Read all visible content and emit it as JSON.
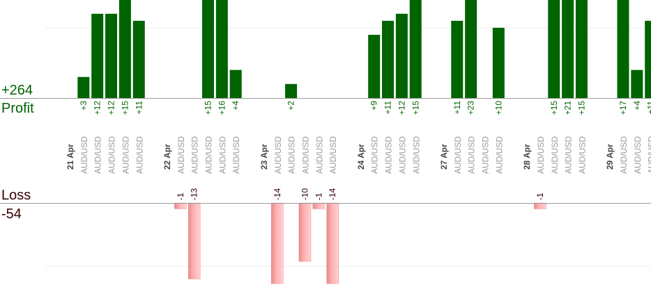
{
  "summary": {
    "profit_total": "+264",
    "profit_label": "Profit",
    "loss_label": "Loss",
    "loss_total": "-54"
  },
  "colors": {
    "profit_bar": "#006400",
    "profit_text": "#006400",
    "loss_bar": "#ffb3b3",
    "loss_bar_edge": "#e88a8a",
    "loss_text": "#330000",
    "axis_line": "#999999",
    "grid_line": "#eeeeee",
    "category_text": "#999999",
    "date_text": "#444444"
  },
  "chart_data": {
    "type": "bar",
    "title": "",
    "xlabel": "",
    "ylabel": "",
    "profit_ylim": [
      0,
      17
    ],
    "loss_ylim": [
      0,
      -14
    ],
    "grid": true,
    "items": [
      {
        "date": "21 Apr"
      },
      {
        "label": "AUD/USD",
        "value": 3
      },
      {
        "label": "AUD/USD",
        "value": 12
      },
      {
        "label": "AUD/USD",
        "value": 12
      },
      {
        "label": "AUD/USD",
        "value": 15
      },
      {
        "label": "AUD/USD",
        "value": 11
      },
      {
        "gap": true
      },
      {
        "date": "22 Apr"
      },
      {
        "label": "AUD/USD",
        "value": -1
      },
      {
        "label": "AUD/USD",
        "value": -13
      },
      {
        "label": "AUD/USD",
        "value": 15
      },
      {
        "label": "AUD/USD",
        "value": 16
      },
      {
        "label": "AUD/USD",
        "value": 4
      },
      {
        "gap": true
      },
      {
        "date": "23 Apr"
      },
      {
        "label": "AUD/USD",
        "value": -14
      },
      {
        "label": "AUD/USD",
        "value": 2
      },
      {
        "label": "AUD/USD",
        "value": -10
      },
      {
        "label": "AUD/USD",
        "value": -1
      },
      {
        "label": "AUD/USD",
        "value": -14
      },
      {
        "gap": true
      },
      {
        "date": "24 Apr"
      },
      {
        "label": "AUD/USD",
        "value": 9
      },
      {
        "label": "AUD/USD",
        "value": 11
      },
      {
        "label": "AUD/USD",
        "value": 12
      },
      {
        "label": "AUD/USD",
        "value": 15
      },
      {
        "gap": true
      },
      {
        "date": "27 Apr"
      },
      {
        "label": "AUD/USD",
        "value": 11
      },
      {
        "label": "AUD/USD",
        "value": 23
      },
      {
        "label": "AUD/USD",
        "value": null
      },
      {
        "label": "AUD/USD",
        "value": 10
      },
      {
        "gap": true
      },
      {
        "date": "28 Apr"
      },
      {
        "label": "AUD/USD",
        "value": -1
      },
      {
        "label": "AUD/USD",
        "value": 15
      },
      {
        "label": "AUD/USD",
        "value": 21
      },
      {
        "label": "AUD/USD",
        "value": 15
      },
      {
        "gap": true
      },
      {
        "date": "29 Apr"
      },
      {
        "label": "AUD/USD",
        "value": 17
      },
      {
        "label": "AUD/USD",
        "value": 4
      },
      {
        "label": "AUD/USD",
        "value": 11
      }
    ]
  }
}
